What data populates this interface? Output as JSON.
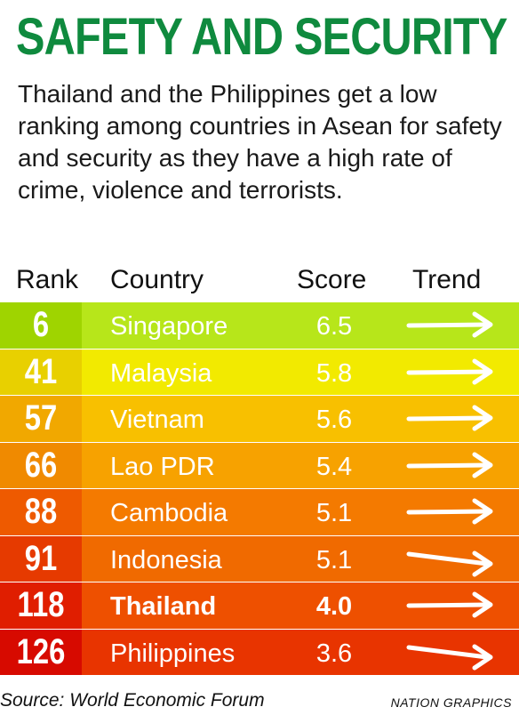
{
  "title": "SAFETY AND SECURITY",
  "subtitle": "Thailand and the Philippines get a low ranking among countries in Asean for safety and security as they have a high rate of crime, violence and terrorists.",
  "header": {
    "rank": "Rank",
    "country": "Country",
    "score": "Score",
    "trend": "Trend"
  },
  "chart_data": {
    "type": "table",
    "columns": [
      "Rank",
      "Country",
      "Score",
      "Trend"
    ],
    "rows": [
      {
        "rank": "6",
        "country": "Singapore",
        "score": "6.5",
        "trend": "flat",
        "highlight": false,
        "rank_color": "#9fd400",
        "row_color": "#b7e61a"
      },
      {
        "rank": "41",
        "country": "Malaysia",
        "score": "5.8",
        "trend": "flat",
        "highlight": false,
        "rank_color": "#e8d000",
        "row_color": "#f2ea00"
      },
      {
        "rank": "57",
        "country": "Vietnam",
        "score": "5.6",
        "trend": "flat",
        "highlight": false,
        "rank_color": "#f1a800",
        "row_color": "#f8c000"
      },
      {
        "rank": "66",
        "country": "Lao PDR",
        "score": "5.4",
        "trend": "flat",
        "highlight": false,
        "rank_color": "#f08a00",
        "row_color": "#f7a200"
      },
      {
        "rank": "88",
        "country": "Cambodia",
        "score": "5.1",
        "trend": "flat",
        "highlight": false,
        "rank_color": "#ee5a00",
        "row_color": "#f47a00"
      },
      {
        "rank": "91",
        "country": "Indonesia",
        "score": "5.1",
        "trend": "down",
        "highlight": false,
        "rank_color": "#e63a00",
        "row_color": "#f06a00"
      },
      {
        "rank": "118",
        "country": "Thailand",
        "score": "4.0",
        "trend": "flat",
        "highlight": true,
        "rank_color": "#e01e00",
        "row_color": "#ee5000"
      },
      {
        "rank": "126",
        "country": "Philippines",
        "score": "3.6",
        "trend": "down",
        "highlight": false,
        "rank_color": "#d70a00",
        "row_color": "#e83400"
      }
    ]
  },
  "footer": {
    "source": "Source: World Economic Forum",
    "credit": "NATION GRAPHICS"
  }
}
